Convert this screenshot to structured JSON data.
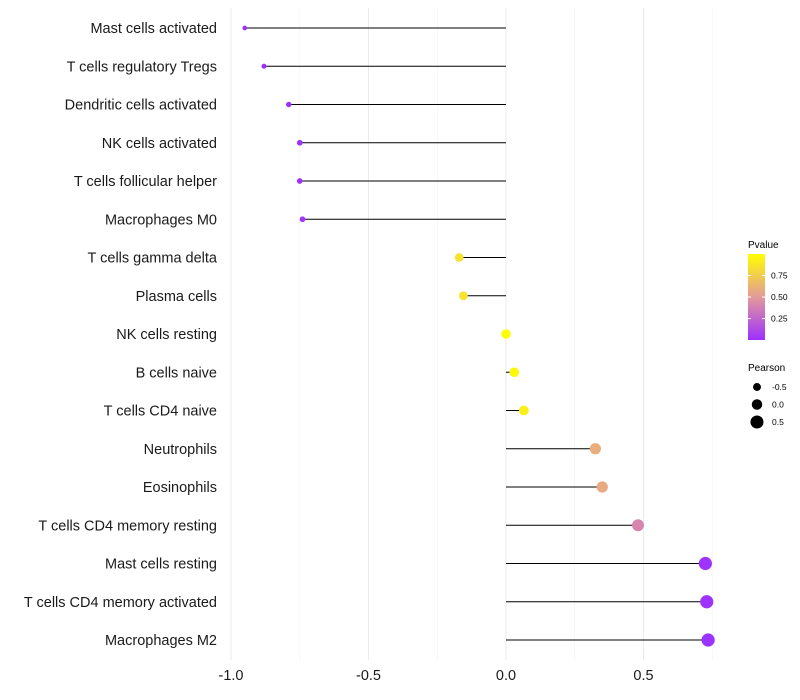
{
  "chart_data": {
    "type": "lollipop",
    "title": "",
    "xlabel": "",
    "ylabel": "",
    "xlim": [
      -1.0,
      0.75
    ],
    "x_ticks": [
      -1.0,
      -0.5,
      0.0,
      0.5
    ],
    "x_tick_labels": [
      "-1.0",
      "-0.5",
      "0.0",
      "0.5"
    ],
    "grid": true,
    "categories": [
      "Mast cells activated",
      "T cells regulatory  Tregs",
      "Dendritic cells activated",
      "NK cells activated",
      "T cells follicular helper",
      "Macrophages M0",
      "T cells gamma delta",
      "Plasma cells",
      "NK cells resting",
      "B cells naive",
      "T cells CD4 naive",
      "Neutrophils",
      "Eosinophils",
      "T cells CD4 memory resting",
      "Mast cells resting",
      "T cells CD4 memory activated",
      "Macrophages M2"
    ],
    "pearson": [
      -0.95,
      -0.88,
      -0.79,
      -0.75,
      -0.75,
      -0.74,
      -0.17,
      -0.155,
      0.0,
      0.03,
      0.065,
      0.325,
      0.35,
      0.48,
      0.725,
      0.73,
      0.735
    ],
    "pvalue": [
      0.001,
      0.002,
      0.01,
      0.02,
      0.02,
      0.03,
      0.85,
      0.86,
      0.99,
      0.96,
      0.92,
      0.6,
      0.58,
      0.4,
      0.02,
      0.015,
      0.01
    ],
    "legend": {
      "color_title": "Pvalue",
      "color_ticks": [
        "0.75",
        "0.50",
        "0.25"
      ],
      "color_tick_values": [
        0.75,
        0.5,
        0.25
      ],
      "color_range": [
        0.001,
        1.0
      ],
      "color_low": "#9b30ff",
      "color_mid": "#e39a9a",
      "color_high": "#ffff00",
      "size_title": "Pearson",
      "size_labels": [
        "-0.5",
        "0.0",
        "0.5"
      ],
      "size_values": [
        -0.5,
        0.0,
        0.5
      ],
      "placement": "right"
    }
  }
}
